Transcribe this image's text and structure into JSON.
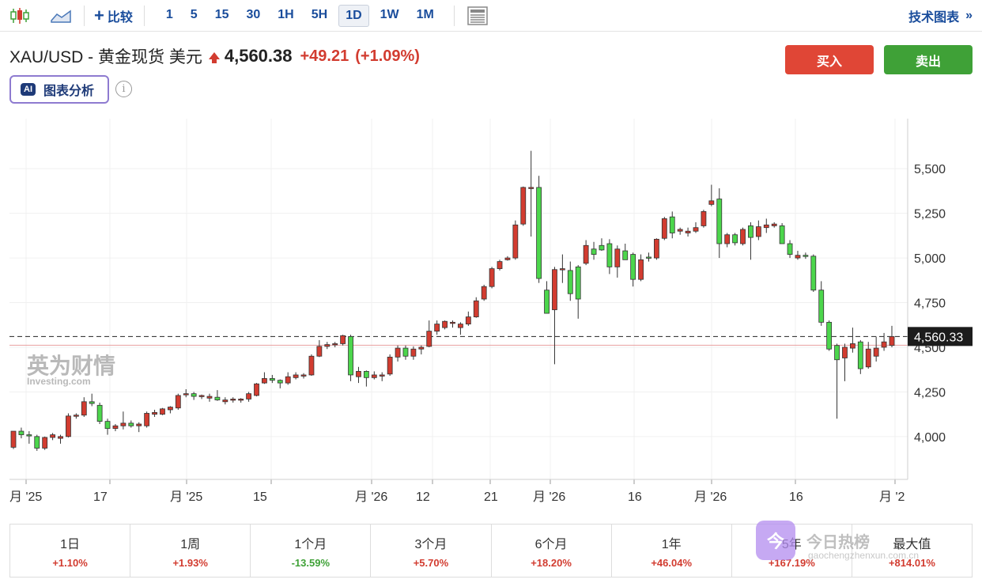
{
  "toolbar": {
    "compare_label": "比较",
    "intervals": [
      "1",
      "5",
      "15",
      "30",
      "1H",
      "5H",
      "1D",
      "1W",
      "1M"
    ],
    "active_interval": "1D",
    "tech_chart_label": "技术图表",
    "icons": [
      "candlestick-chart-icon",
      "area-chart-icon",
      "plus-icon",
      "news-layout-icon",
      "double-chevron-right-icon"
    ]
  },
  "header": {
    "symbol_title": "XAU/USD - 黄金现货 美元",
    "price": "4,560.38",
    "change": "+49.21",
    "change_pct": "(+1.09%)",
    "buy_label": "买入",
    "sell_label": "卖出",
    "ai_badge": "AI",
    "ai_label": "图表分析",
    "info_icon": "i"
  },
  "chart": {
    "watermark_cn": "英为财情",
    "watermark_en": "Investing.com",
    "current_price_label": "4,560.33"
  },
  "chart_data": {
    "type": "candlestick",
    "y_ticks": [
      "5,500",
      "5,250",
      "5,000",
      "4,750",
      "4,500",
      "4,250",
      "4,000"
    ],
    "y_tick_values": [
      5500,
      5250,
      5000,
      4750,
      4500,
      4250,
      4000
    ],
    "ylim": [
      3760,
      5780
    ],
    "x_ticks": [
      "月 '25",
      "17",
      "月 '25",
      "15",
      "月 '26",
      "12",
      "21",
      "月 '26",
      "16",
      "月 '26",
      "16",
      "月 '2"
    ],
    "current_price": 4560.33,
    "reference_price": 4511.17,
    "up_color": "#d23c30",
    "down_color": "#4cd64c",
    "candles": [
      {
        "o": 3940,
        "h": 4030,
        "l": 3930,
        "c": 4030
      },
      {
        "o": 4030,
        "h": 4050,
        "l": 3990,
        "c": 4010
      },
      {
        "o": 4010,
        "h": 4030,
        "l": 3960,
        "c": 4005
      },
      {
        "o": 4000,
        "h": 4010,
        "l": 3920,
        "c": 3935
      },
      {
        "o": 3935,
        "h": 4000,
        "l": 3925,
        "c": 3995
      },
      {
        "o": 3995,
        "h": 4020,
        "l": 3980,
        "c": 4010
      },
      {
        "o": 3990,
        "h": 4010,
        "l": 3960,
        "c": 4000
      },
      {
        "o": 4000,
        "h": 4130,
        "l": 3995,
        "c": 4115
      },
      {
        "o": 4115,
        "h": 4130,
        "l": 4100,
        "c": 4120
      },
      {
        "o": 4120,
        "h": 4220,
        "l": 4110,
        "c": 4195
      },
      {
        "o": 4195,
        "h": 4240,
        "l": 4170,
        "c": 4185
      },
      {
        "o": 4175,
        "h": 4190,
        "l": 4070,
        "c": 4085
      },
      {
        "o": 4085,
        "h": 4100,
        "l": 4010,
        "c": 4045
      },
      {
        "o": 4045,
        "h": 4070,
        "l": 4030,
        "c": 4060
      },
      {
        "o": 4060,
        "h": 4140,
        "l": 4040,
        "c": 4075
      },
      {
        "o": 4075,
        "h": 4090,
        "l": 4050,
        "c": 4060
      },
      {
        "o": 4060,
        "h": 4080,
        "l": 4025,
        "c": 4070
      },
      {
        "o": 4060,
        "h": 4140,
        "l": 4050,
        "c": 4130
      },
      {
        "o": 4125,
        "h": 4150,
        "l": 4110,
        "c": 4135
      },
      {
        "o": 4125,
        "h": 4160,
        "l": 4120,
        "c": 4155
      },
      {
        "o": 4150,
        "h": 4170,
        "l": 4130,
        "c": 4165
      },
      {
        "o": 4160,
        "h": 4240,
        "l": 4150,
        "c": 4230
      },
      {
        "o": 4235,
        "h": 4265,
        "l": 4220,
        "c": 4240
      },
      {
        "o": 4240,
        "h": 4250,
        "l": 4205,
        "c": 4225
      },
      {
        "o": 4225,
        "h": 4235,
        "l": 4210,
        "c": 4230
      },
      {
        "o": 4215,
        "h": 4240,
        "l": 4195,
        "c": 4225
      },
      {
        "o": 4220,
        "h": 4260,
        "l": 4200,
        "c": 4205
      },
      {
        "o": 4195,
        "h": 4220,
        "l": 4180,
        "c": 4205
      },
      {
        "o": 4205,
        "h": 4220,
        "l": 4190,
        "c": 4210
      },
      {
        "o": 4205,
        "h": 4215,
        "l": 4190,
        "c": 4210
      },
      {
        "o": 4210,
        "h": 4250,
        "l": 4195,
        "c": 4240
      },
      {
        "o": 4230,
        "h": 4300,
        "l": 4225,
        "c": 4295
      },
      {
        "o": 4300,
        "h": 4360,
        "l": 4295,
        "c": 4325
      },
      {
        "o": 4325,
        "h": 4345,
        "l": 4300,
        "c": 4315
      },
      {
        "o": 4315,
        "h": 4320,
        "l": 4270,
        "c": 4300
      },
      {
        "o": 4300,
        "h": 4360,
        "l": 4290,
        "c": 4335
      },
      {
        "o": 4330,
        "h": 4360,
        "l": 4320,
        "c": 4345
      },
      {
        "o": 4340,
        "h": 4355,
        "l": 4325,
        "c": 4345
      },
      {
        "o": 4345,
        "h": 4460,
        "l": 4340,
        "c": 4450
      },
      {
        "o": 4450,
        "h": 4540,
        "l": 4445,
        "c": 4505
      },
      {
        "o": 4505,
        "h": 4530,
        "l": 4490,
        "c": 4515
      },
      {
        "o": 4515,
        "h": 4530,
        "l": 4500,
        "c": 4520
      },
      {
        "o": 4520,
        "h": 4570,
        "l": 4510,
        "c": 4565
      },
      {
        "o": 4560,
        "h": 4570,
        "l": 4310,
        "c": 4345
      },
      {
        "o": 4335,
        "h": 4390,
        "l": 4300,
        "c": 4365
      },
      {
        "o": 4365,
        "h": 4370,
        "l": 4280,
        "c": 4330
      },
      {
        "o": 4330,
        "h": 4365,
        "l": 4320,
        "c": 4345
      },
      {
        "o": 4345,
        "h": 4360,
        "l": 4310,
        "c": 4345
      },
      {
        "o": 4350,
        "h": 4460,
        "l": 4340,
        "c": 4445
      },
      {
        "o": 4445,
        "h": 4510,
        "l": 4420,
        "c": 4495
      },
      {
        "o": 4495,
        "h": 4510,
        "l": 4430,
        "c": 4450
      },
      {
        "o": 4450,
        "h": 4505,
        "l": 4430,
        "c": 4490
      },
      {
        "o": 4490,
        "h": 4510,
        "l": 4460,
        "c": 4500
      },
      {
        "o": 4505,
        "h": 4650,
        "l": 4500,
        "c": 4590
      },
      {
        "o": 4590,
        "h": 4650,
        "l": 4570,
        "c": 4630
      },
      {
        "o": 4610,
        "h": 4650,
        "l": 4600,
        "c": 4645
      },
      {
        "o": 4635,
        "h": 4650,
        "l": 4610,
        "c": 4640
      },
      {
        "o": 4610,
        "h": 4640,
        "l": 4570,
        "c": 4630
      },
      {
        "o": 4630,
        "h": 4700,
        "l": 4620,
        "c": 4670
      },
      {
        "o": 4670,
        "h": 4780,
        "l": 4665,
        "c": 4760
      },
      {
        "o": 4770,
        "h": 4850,
        "l": 4760,
        "c": 4840
      },
      {
        "o": 4840,
        "h": 4950,
        "l": 4830,
        "c": 4940
      },
      {
        "o": 4940,
        "h": 4990,
        "l": 4930,
        "c": 4980
      },
      {
        "o": 4990,
        "h": 5010,
        "l": 4985,
        "c": 5000
      },
      {
        "o": 5000,
        "h": 5210,
        "l": 4990,
        "c": 5185
      },
      {
        "o": 5190,
        "h": 5400,
        "l": 5180,
        "c": 5395
      },
      {
        "o": 5390,
        "h": 5600,
        "l": 5120,
        "c": 5395
      },
      {
        "o": 5395,
        "h": 5460,
        "l": 4860,
        "c": 4885
      },
      {
        "o": 4820,
        "h": 4870,
        "l": 4690,
        "c": 4690
      },
      {
        "o": 4710,
        "h": 4950,
        "l": 4405,
        "c": 4935
      },
      {
        "o": 4935,
        "h": 5020,
        "l": 4860,
        "c": 4940
      },
      {
        "o": 4930,
        "h": 4980,
        "l": 4760,
        "c": 4800
      },
      {
        "o": 4950,
        "h": 4960,
        "l": 4660,
        "c": 4770
      },
      {
        "o": 4970,
        "h": 5100,
        "l": 4960,
        "c": 5070
      },
      {
        "o": 5050,
        "h": 5090,
        "l": 4990,
        "c": 5020
      },
      {
        "o": 5070,
        "h": 5110,
        "l": 5040,
        "c": 5045
      },
      {
        "o": 5080,
        "h": 5105,
        "l": 4910,
        "c": 4950
      },
      {
        "o": 4950,
        "h": 5070,
        "l": 4890,
        "c": 5050
      },
      {
        "o": 5040,
        "h": 5080,
        "l": 5000,
        "c": 4990
      },
      {
        "o": 5020,
        "h": 5030,
        "l": 4840,
        "c": 4880
      },
      {
        "o": 4880,
        "h": 5020,
        "l": 4870,
        "c": 4990
      },
      {
        "o": 5005,
        "h": 5030,
        "l": 4980,
        "c": 5000
      },
      {
        "o": 5000,
        "h": 5110,
        "l": 4990,
        "c": 5105
      },
      {
        "o": 5110,
        "h": 5230,
        "l": 5100,
        "c": 5220
      },
      {
        "o": 5230,
        "h": 5260,
        "l": 5110,
        "c": 5140
      },
      {
        "o": 5150,
        "h": 5170,
        "l": 5130,
        "c": 5160
      },
      {
        "o": 5140,
        "h": 5170,
        "l": 5120,
        "c": 5150
      },
      {
        "o": 5150,
        "h": 5200,
        "l": 5140,
        "c": 5170
      },
      {
        "o": 5180,
        "h": 5270,
        "l": 5170,
        "c": 5260
      },
      {
        "o": 5300,
        "h": 5410,
        "l": 5290,
        "c": 5320
      },
      {
        "o": 5330,
        "h": 5390,
        "l": 5000,
        "c": 5080
      },
      {
        "o": 5080,
        "h": 5140,
        "l": 5060,
        "c": 5130
      },
      {
        "o": 5130,
        "h": 5140,
        "l": 5070,
        "c": 5085
      },
      {
        "o": 5080,
        "h": 5170,
        "l": 5070,
        "c": 5160
      },
      {
        "o": 5180,
        "h": 5200,
        "l": 4990,
        "c": 5115
      },
      {
        "o": 5120,
        "h": 5210,
        "l": 5100,
        "c": 5175
      },
      {
        "o": 5170,
        "h": 5220,
        "l": 5140,
        "c": 5185
      },
      {
        "o": 5180,
        "h": 5200,
        "l": 5170,
        "c": 5190
      },
      {
        "o": 5180,
        "h": 5195,
        "l": 5080,
        "c": 5080
      },
      {
        "o": 5080,
        "h": 5100,
        "l": 5000,
        "c": 5020
      },
      {
        "o": 5000,
        "h": 5040,
        "l": 4990,
        "c": 5015
      },
      {
        "o": 5015,
        "h": 5030,
        "l": 4995,
        "c": 5010
      },
      {
        "o": 5010,
        "h": 5020,
        "l": 4810,
        "c": 4820
      },
      {
        "o": 4820,
        "h": 4870,
        "l": 4620,
        "c": 4640
      },
      {
        "o": 4640,
        "h": 4650,
        "l": 4480,
        "c": 4490
      },
      {
        "o": 4510,
        "h": 4520,
        "l": 4100,
        "c": 4430
      },
      {
        "o": 4440,
        "h": 4520,
        "l": 4310,
        "c": 4500
      },
      {
        "o": 4495,
        "h": 4610,
        "l": 4470,
        "c": 4520
      },
      {
        "o": 4530,
        "h": 4540,
        "l": 4350,
        "c": 4380
      },
      {
        "o": 4390,
        "h": 4530,
        "l": 4380,
        "c": 4490
      },
      {
        "o": 4450,
        "h": 4560,
        "l": 4420,
        "c": 4495
      },
      {
        "o": 4500,
        "h": 4580,
        "l": 4480,
        "c": 4530
      },
      {
        "o": 4510,
        "h": 4620,
        "l": 4500,
        "c": 4560
      }
    ]
  },
  "performance": [
    {
      "label": "1日",
      "value": "+1.10%",
      "dir": "pos"
    },
    {
      "label": "1周",
      "value": "+1.93%",
      "dir": "pos"
    },
    {
      "label": "1个月",
      "value": "-13.59%",
      "dir": "neg"
    },
    {
      "label": "3个月",
      "value": "+5.70%",
      "dir": "pos"
    },
    {
      "label": "6个月",
      "value": "+18.20%",
      "dir": "pos"
    },
    {
      "label": "1年",
      "value": "+46.04%",
      "dir": "pos"
    },
    {
      "label": "5年",
      "value": "+167.19%",
      "dir": "pos"
    },
    {
      "label": "最大值",
      "value": "+814.01%",
      "dir": "pos"
    }
  ],
  "overlay_watermark": {
    "logo_glyph": "今",
    "name": "今日热榜",
    "url": "gaochengzhenxun.com.cn"
  }
}
